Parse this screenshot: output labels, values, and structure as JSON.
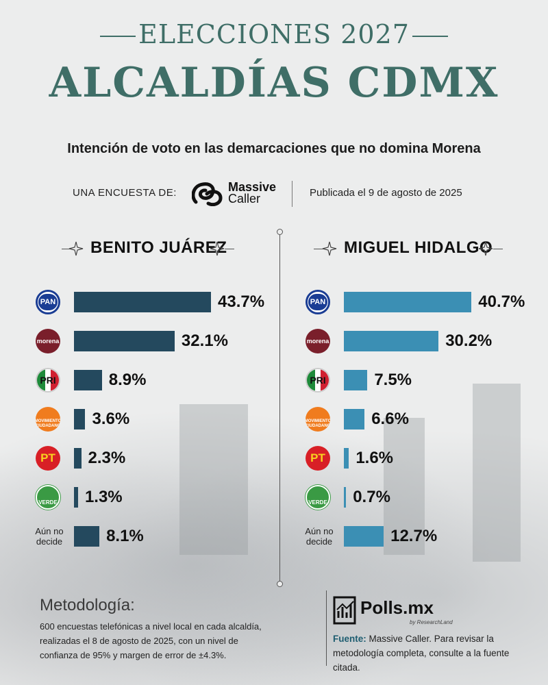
{
  "header": {
    "kicker": "ELECCIONES 2027",
    "title": "ALCALDÍAS CDMX",
    "subtitle": "Intención de voto en las demarcaciones que no domina Morena",
    "byline_label": "UNA ENCUESTA DE:",
    "pollster_line1": "Massive",
    "pollster_line2": "Caller",
    "published": "Publicada el 9 de agosto de 2025"
  },
  "colors": {
    "title": "#3f6e67",
    "bar_benito": "#24495e",
    "bar_miguel": "#3b8fb4"
  },
  "party_logos": {
    "pan": "PAN",
    "morena": "morena",
    "pri": "PRI",
    "mc": "MOVIMIENTO CIUDADANO",
    "pt": "PT",
    "verde": "VERDE",
    "undecided_line1": "Aún no",
    "undecided_line2": "decide"
  },
  "chart_data": [
    {
      "type": "bar",
      "orientation": "horizontal",
      "title": "BENITO JUÁREZ",
      "categories": [
        "PAN",
        "Morena",
        "PRI",
        "MC",
        "PT",
        "Verde",
        "Aún no decide"
      ],
      "values": [
        43.7,
        32.1,
        8.9,
        3.6,
        2.3,
        1.3,
        8.1
      ],
      "labels": [
        "43.7%",
        "32.1%",
        "8.9%",
        "3.6%",
        "2.3%",
        "1.3%",
        "8.1%"
      ],
      "color": "#24495e",
      "xlim": [
        0,
        45
      ]
    },
    {
      "type": "bar",
      "orientation": "horizontal",
      "title": "MIGUEL HIDALGO",
      "categories": [
        "PAN",
        "Morena",
        "PRI",
        "MC",
        "PT",
        "Verde",
        "Aún no decide"
      ],
      "values": [
        40.7,
        30.2,
        7.5,
        6.6,
        1.6,
        0.7,
        12.7
      ],
      "labels": [
        "40.7%",
        "30.2%",
        "7.5%",
        "6.6%",
        "1.6%",
        "0.7%",
        "12.7%"
      ],
      "color": "#3b8fb4",
      "xlim": [
        0,
        45
      ]
    }
  ],
  "footer": {
    "methodology_title": "Metodología:",
    "methodology_text": "600 encuestas telefónicas a nivel local en cada alcaldía, realizadas el 8 de agosto de 2025, con un nivel de confianza de 95% y margen de error de ±4.3%.",
    "brand": "Polls.mx",
    "brand_sub": "by ResearchLand",
    "source_label": "Fuente:",
    "source_text": "Massive Caller. Para revisar la metodología completa, consulte a la fuente citada."
  }
}
